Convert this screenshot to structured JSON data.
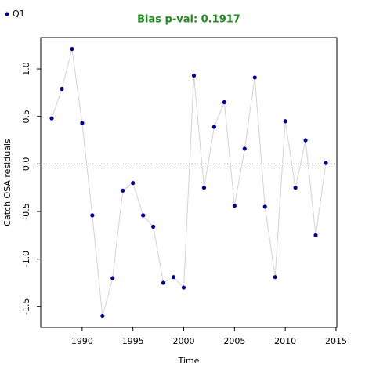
{
  "chart_data": {
    "type": "line",
    "title": "Bias p-val: 0.1917",
    "title_color": "#228b22",
    "x_label": "Time",
    "y_label": "Catch OSA residuals",
    "x": [
      1987,
      1988,
      1989,
      1990,
      1991,
      1992,
      1993,
      1994,
      1995,
      1996,
      1997,
      1998,
      1999,
      2000,
      2001,
      2002,
      2003,
      2004,
      2005,
      2006,
      2007,
      2008,
      2009,
      2010,
      2011,
      2012,
      2013,
      2014
    ],
    "series": [
      {
        "name": "Q1",
        "color": "#00008b",
        "line_color": "#d3d3d3",
        "values": [
          0.48,
          0.79,
          1.21,
          0.43,
          -0.54,
          -1.6,
          -1.2,
          -0.28,
          -0.2,
          -0.54,
          -0.66,
          -1.25,
          -1.19,
          -1.3,
          0.93,
          -0.25,
          0.39,
          0.65,
          -0.44,
          0.16,
          0.91,
          -0.45,
          -1.19,
          0.45,
          -0.25,
          0.25,
          -0.75,
          0.01
        ]
      }
    ],
    "xlim": [
      1985.92,
      2015.08
    ],
    "ylim": [
      -1.72,
      1.33
    ],
    "xticks": [
      1990,
      1995,
      2000,
      2005,
      2010,
      2015
    ],
    "yticks": [
      -1.5,
      {
        "value": -1,
        "label": "-1.0"
      },
      -0.5,
      {
        "value": 0,
        "label": "0.0"
      },
      0.5,
      {
        "value": 1,
        "label": "1.0"
      }
    ],
    "hline": 0,
    "legend": "top-left",
    "grid": false
  }
}
